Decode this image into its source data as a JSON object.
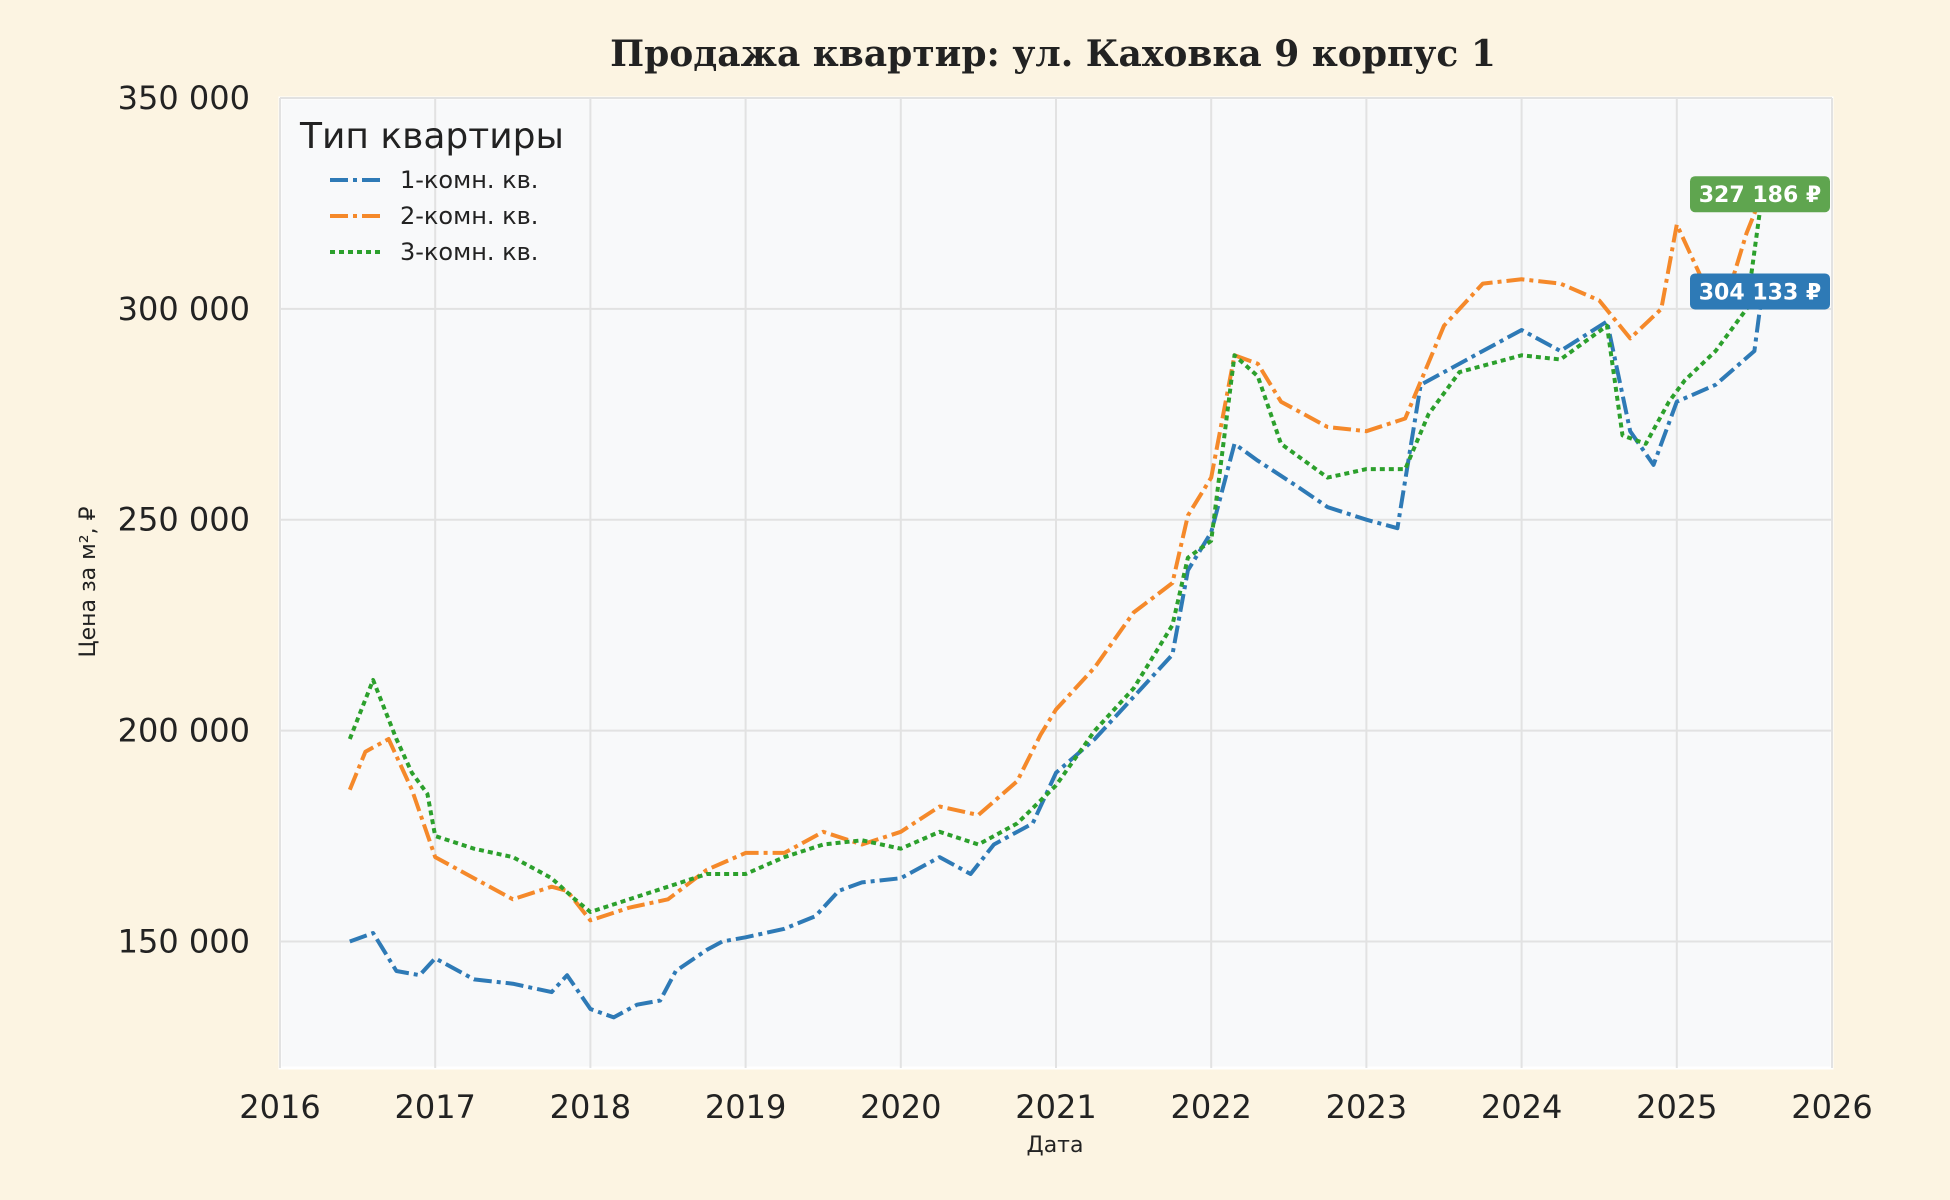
{
  "chart_data": {
    "type": "line",
    "title": "Продажа квартир: ул. Каховка 9 корпус 1",
    "xlabel": "Дата",
    "ylabel": "Цена за м², ₽",
    "xlim": [
      2016.0,
      2026.0
    ],
    "ylim": [
      120000,
      350000
    ],
    "x_ticks": [
      "2016",
      "2017",
      "2018",
      "2019",
      "2020",
      "2021",
      "2022",
      "2023",
      "2024",
      "2025",
      "2026"
    ],
    "y_ticks": [
      {
        "value": 150000,
        "label": "150 000"
      },
      {
        "value": 200000,
        "label": "200 000"
      },
      {
        "value": 250000,
        "label": "250 000"
      },
      {
        "value": 300000,
        "label": "300 000"
      },
      {
        "value": 350000,
        "label": "350 000"
      }
    ],
    "grid": true,
    "legend": {
      "title": "Тип квартиры",
      "position": "top-left"
    },
    "series": [
      {
        "name": "1-комн. кв.",
        "color": "#2e7ab6",
        "style": "dashdot",
        "x": [
          2016.45,
          2016.6,
          2016.75,
          2016.9,
          2017.0,
          2017.25,
          2017.5,
          2017.75,
          2017.85,
          2018.0,
          2018.15,
          2018.3,
          2018.45,
          2018.55,
          2018.75,
          2018.85,
          2019.0,
          2019.25,
          2019.45,
          2019.6,
          2019.75,
          2020.0,
          2020.25,
          2020.45,
          2020.6,
          2020.85,
          2021.0,
          2021.25,
          2021.5,
          2021.75,
          2021.85,
          2022.0,
          2022.15,
          2022.3,
          2022.55,
          2022.75,
          2023.0,
          2023.2,
          2023.35,
          2023.5,
          2023.75,
          2024.0,
          2024.25,
          2024.55,
          2024.7,
          2024.85,
          2025.0,
          2025.25,
          2025.5,
          2025.55
        ],
        "values": [
          150000,
          152000,
          143000,
          142000,
          146000,
          141000,
          140000,
          138000,
          142000,
          134000,
          132000,
          135000,
          136000,
          143000,
          148000,
          150000,
          151000,
          153000,
          156000,
          162000,
          164000,
          165000,
          170000,
          166000,
          173000,
          178000,
          190000,
          198000,
          208000,
          218000,
          238000,
          247000,
          268000,
          264000,
          258000,
          253000,
          250000,
          248000,
          282000,
          285000,
          290000,
          295000,
          290000,
          297000,
          271000,
          263000,
          278000,
          282000,
          290000,
          304133
        ]
      },
      {
        "name": "2-комн. кв.",
        "color": "#f5892a",
        "style": "dashdot",
        "x": [
          2016.45,
          2016.55,
          2016.7,
          2016.85,
          2017.0,
          2017.25,
          2017.5,
          2017.75,
          2017.85,
          2018.0,
          2018.25,
          2018.5,
          2018.75,
          2019.0,
          2019.25,
          2019.5,
          2019.75,
          2020.0,
          2020.25,
          2020.5,
          2020.75,
          2020.9,
          2021.0,
          2021.25,
          2021.5,
          2021.75,
          2021.85,
          2022.0,
          2022.15,
          2022.3,
          2022.45,
          2022.75,
          2023.0,
          2023.25,
          2023.5,
          2023.75,
          2024.0,
          2024.25,
          2024.5,
          2024.7,
          2024.9,
          2025.0,
          2025.15,
          2025.3,
          2025.45,
          2025.55
        ],
        "values": [
          186000,
          195000,
          198000,
          186000,
          170000,
          165000,
          160000,
          163000,
          162000,
          155000,
          158000,
          160000,
          167000,
          171000,
          171000,
          176000,
          173000,
          176000,
          182000,
          180000,
          188000,
          199000,
          205000,
          215000,
          228000,
          235000,
          251000,
          260000,
          289000,
          287000,
          278000,
          272000,
          271000,
          274000,
          296000,
          306000,
          307000,
          306000,
          302000,
          293000,
          300000,
          320000,
          308000,
          300000,
          318000,
          327186
        ]
      },
      {
        "name": "3-комн. кв.",
        "color": "#2ca02c",
        "style": "dotted",
        "x": [
          2016.45,
          2016.6,
          2016.75,
          2016.85,
          2016.95,
          2017.0,
          2017.25,
          2017.5,
          2017.75,
          2017.9,
          2018.0,
          2018.25,
          2018.5,
          2018.75,
          2019.0,
          2019.25,
          2019.5,
          2019.75,
          2020.0,
          2020.25,
          2020.5,
          2020.75,
          2021.0,
          2021.25,
          2021.5,
          2021.75,
          2021.85,
          2022.0,
          2022.15,
          2022.3,
          2022.45,
          2022.75,
          2023.0,
          2023.25,
          2023.4,
          2023.6,
          2023.8,
          2024.0,
          2024.25,
          2024.55,
          2024.65,
          2024.8,
          2024.95,
          2025.05,
          2025.25,
          2025.45,
          2025.55
        ],
        "values": [
          198000,
          212000,
          198000,
          190000,
          185000,
          175000,
          172000,
          170000,
          165000,
          160000,
          157000,
          160000,
          163000,
          166000,
          166000,
          170000,
          173000,
          174000,
          172000,
          176000,
          173000,
          178000,
          187000,
          200000,
          210000,
          225000,
          241000,
          245000,
          289000,
          284000,
          268000,
          260000,
          262000,
          262000,
          275000,
          285000,
          287000,
          289000,
          288000,
          296000,
          270000,
          268000,
          278000,
          283000,
          290000,
          300000,
          327186
        ]
      }
    ],
    "annotations": [
      {
        "text": "327 186 ₽",
        "color": "#5fa54f",
        "value": 327186
      },
      {
        "text": "304 133 ₽",
        "color": "#2e7ab6",
        "value": 304133
      }
    ]
  }
}
